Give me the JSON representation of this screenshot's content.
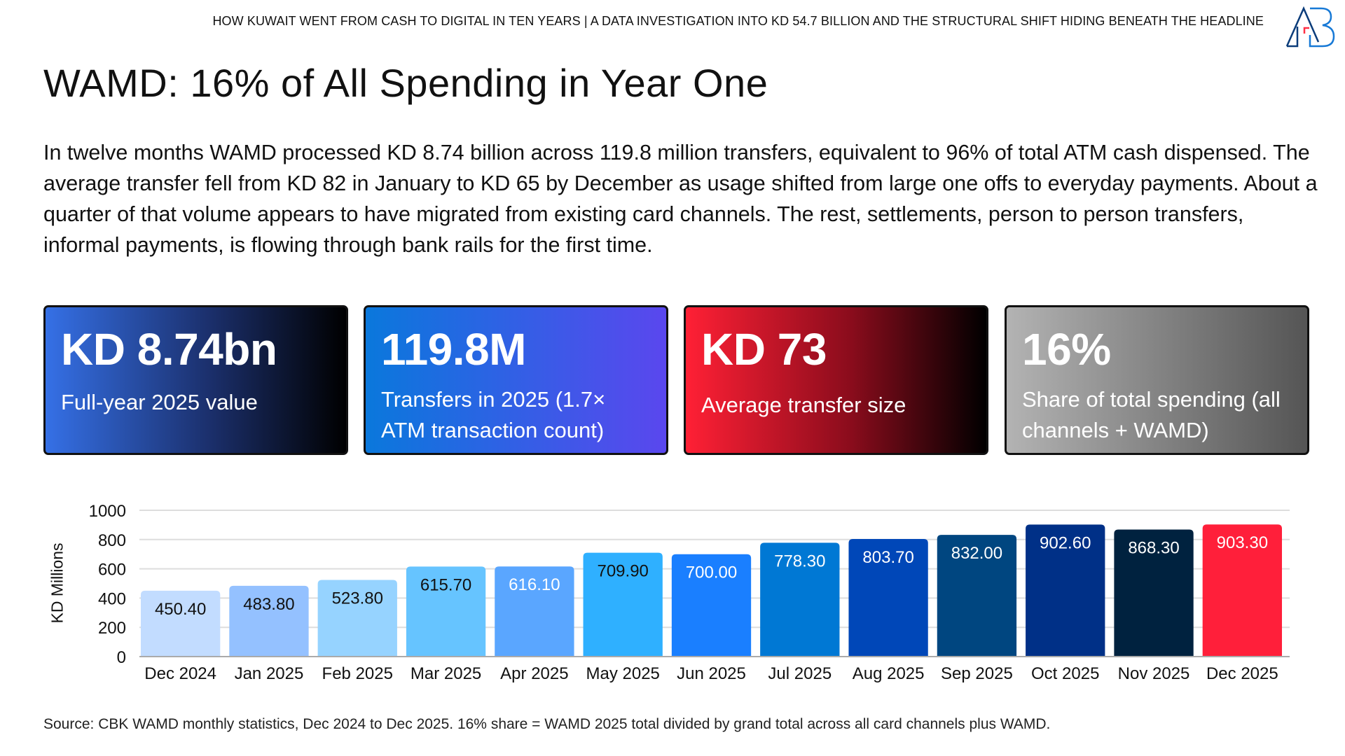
{
  "header": {
    "text": "HOW KUWAIT WENT FROM CASH TO DIGITAL IN TEN YEARS | A DATA INVESTIGATION INTO KD 54.7 BILLION AND THE STRUCTURAL SHIFT HIDING BENEATH THE HEADLINE",
    "logo": "AB"
  },
  "title": "WAMD: 16% of All Spending in Year One",
  "intro": "In twelve months WAMD processed KD 8.74 billion across 119.8 million transfers, equivalent to 96% of total ATM cash dispensed. The average transfer fell from KD 82 in January to KD 65 by December as usage shifted from large one offs to everyday payments. About a quarter of that volume appears to have migrated from existing card channels. The rest, settlements, person to person transfers, informal payments, is flowing through bank rails for the first time.",
  "cards": [
    {
      "value": "KD 8.74bn",
      "label": "Full-year 2025 value"
    },
    {
      "value": "119.8M",
      "label": "Transfers in 2025 (1.7× ATM transaction count)"
    },
    {
      "value": "KD 73",
      "label": "Average transfer size"
    },
    {
      "value": "16%",
      "label": "Share of total spending (all channels + WAMD)"
    }
  ],
  "chart_data": {
    "type": "bar",
    "ylabel": "KD Millions",
    "xlabel": "",
    "ylim": [
      0,
      1000
    ],
    "yticks": [
      "0",
      "200",
      "400",
      "600",
      "800",
      "1000"
    ],
    "categories": [
      "Dec 2024",
      "Jan 2025",
      "Feb 2025",
      "Mar 2025",
      "Apr 2025",
      "May 2025",
      "Jun 2025",
      "Jul 2025",
      "Aug 2025",
      "Sep 2025",
      "Oct 2025",
      "Nov 2025",
      "Dec 2025"
    ],
    "values": [
      450.4,
      483.8,
      523.8,
      615.7,
      616.1,
      709.9,
      700.0,
      778.3,
      803.7,
      832.0,
      902.6,
      868.3,
      903.3
    ],
    "labels": [
      "450.40",
      "483.80",
      "523.80",
      "615.70",
      "616.10",
      "709.90",
      "700.00",
      "778.30",
      "803.70",
      "832.00",
      "902.60",
      "868.30",
      "903.30"
    ],
    "colors": [
      "#c2dcff",
      "#94c1ff",
      "#96d3ff",
      "#66c4ff",
      "#5aa6ff",
      "#2fb0ff",
      "#1a7fff",
      "#0078d4",
      "#0047b8",
      "#004680",
      "#003087",
      "#00223f",
      "#ff1f3a"
    ],
    "label_colors": [
      "#111",
      "#111",
      "#111",
      "#111",
      "#fff",
      "#111",
      "#fff",
      "#fff",
      "#fff",
      "#fff",
      "#fff",
      "#fff",
      "#fff"
    ],
    "grid": true
  },
  "source": "Source: CBK WAMD monthly statistics, Dec 2024 to Dec 2025. 16% share = WAMD 2025 total divided by grand total across all card channels plus WAMD."
}
